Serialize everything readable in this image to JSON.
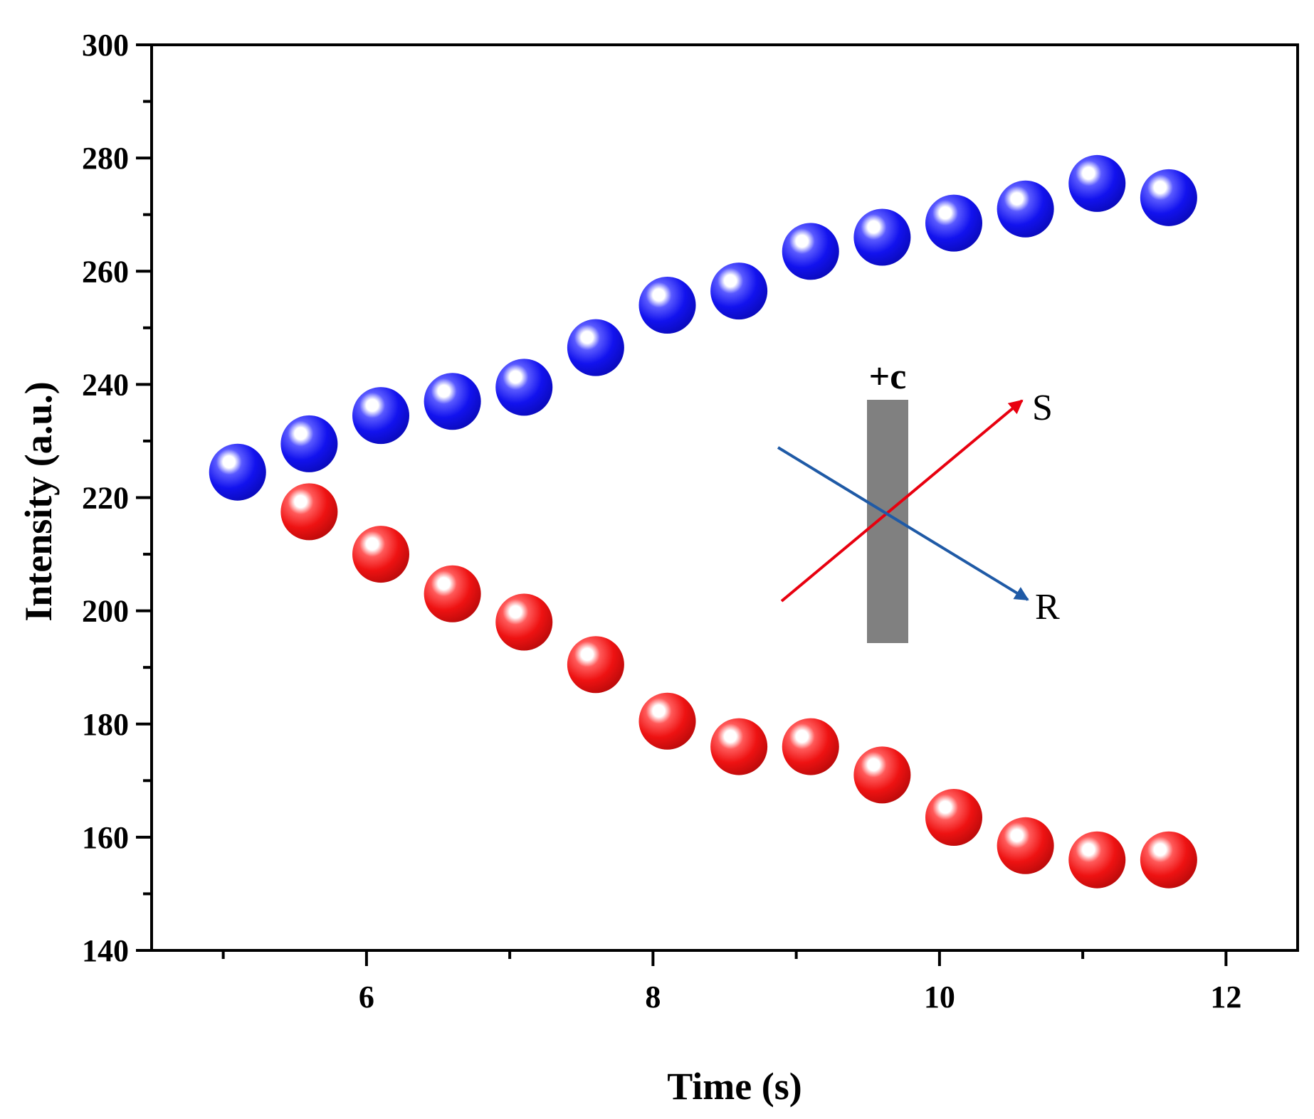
{
  "chart_data": {
    "type": "scatter",
    "title": "",
    "xlabel": "Time (s)",
    "ylabel": "Intensity (a.u.)",
    "xlim": [
      4.5,
      12.5
    ],
    "ylim": [
      140,
      300
    ],
    "xticks": [
      6,
      8,
      10,
      12
    ],
    "yticks": [
      140,
      160,
      180,
      200,
      220,
      240,
      260,
      280,
      300
    ],
    "x_minor_step": 1,
    "y_minor_step": 10,
    "grid": false,
    "series": [
      {
        "name": "blue",
        "color": "#1a1ae6",
        "x": [
          5.1,
          5.6,
          6.1,
          6.6,
          7.1,
          7.6,
          8.1,
          8.6,
          9.1,
          9.6,
          10.1,
          10.6,
          11.1,
          11.6
        ],
        "y": [
          224.5,
          229.5,
          234.5,
          237,
          239.5,
          246.5,
          254,
          256.5,
          263.5,
          266,
          268.5,
          271,
          275.5,
          273
        ]
      },
      {
        "name": "red",
        "color": "#e61a1a",
        "x": [
          5.6,
          6.1,
          6.6,
          7.1,
          7.6,
          8.1,
          8.6,
          9.1,
          9.6,
          10.1,
          10.6,
          11.1,
          11.6
        ],
        "y": [
          217.5,
          210,
          203,
          198,
          190.5,
          180.5,
          176,
          176,
          171,
          163.5,
          158.5,
          156,
          156
        ]
      }
    ],
    "annotations": {
      "polarity_label": "+c",
      "arrow_up_label": "S",
      "arrow_down_label": "R",
      "arrow_up_color": "#e8000f",
      "arrow_down_color": "#1f5aa6",
      "bar_color": "#808080"
    }
  }
}
